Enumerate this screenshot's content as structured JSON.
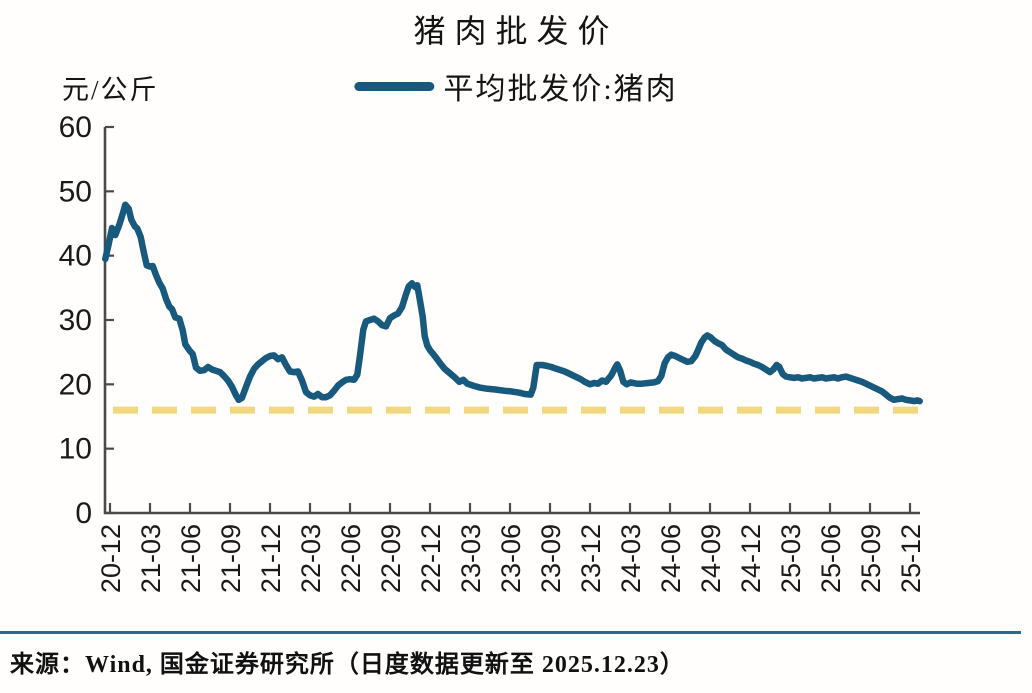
{
  "title": "猪肉批发价",
  "y_axis_unit": "元/公斤",
  "legend": {
    "label": "平均批发价:猪肉"
  },
  "source_note": "来源：Wind, 国金证券研究所（日度数据更新至 2025.12.23）",
  "chart_data": {
    "type": "line",
    "title": "猪肉批发价",
    "ylabel": "元/公斤",
    "ylim": [
      0,
      60
    ],
    "yticks": [
      0,
      10,
      20,
      30,
      40,
      50,
      60
    ],
    "x_tick_labels": [
      "20-12",
      "21-03",
      "21-06",
      "21-09",
      "21-12",
      "22-03",
      "22-06",
      "22-09",
      "22-12",
      "23-03",
      "23-06",
      "23-09",
      "23-12",
      "24-03",
      "24-06",
      "24-09",
      "24-12",
      "25-03",
      "25-06",
      "25-09",
      "25-12"
    ],
    "x_unit": "months_since_2020-12 (ticks quarterly)",
    "grid": false,
    "legend_position": "top-center",
    "axis_color": "#4A4A4A",
    "reference_line": {
      "value": 16,
      "style": "dashed",
      "color": "#F1D87E"
    },
    "series": [
      {
        "name": "平均批发价:猪肉",
        "color": "#175A7E",
        "points": [
          [
            -0.35,
            39.5
          ],
          [
            -0.1,
            41.8
          ],
          [
            0.15,
            44.3
          ],
          [
            0.4,
            43.2
          ],
          [
            0.7,
            44.8
          ],
          [
            0.95,
            46.5
          ],
          [
            1.15,
            47.9
          ],
          [
            1.4,
            47.3
          ],
          [
            1.6,
            45.6
          ],
          [
            1.85,
            44.6
          ],
          [
            2.05,
            44.2
          ],
          [
            2.3,
            42.9
          ],
          [
            2.5,
            40.9
          ],
          [
            2.75,
            38.5
          ],
          [
            3.0,
            38.3
          ],
          [
            3.2,
            38.4
          ],
          [
            3.45,
            37.0
          ],
          [
            3.7,
            35.8
          ],
          [
            3.95,
            34.9
          ],
          [
            4.2,
            33.3
          ],
          [
            4.45,
            32.1
          ],
          [
            4.65,
            31.7
          ],
          [
            4.9,
            30.4
          ],
          [
            5.2,
            30.2
          ],
          [
            5.45,
            28.4
          ],
          [
            5.65,
            26.2
          ],
          [
            5.95,
            25.3
          ],
          [
            6.2,
            24.7
          ],
          [
            6.45,
            22.6
          ],
          [
            6.75,
            22.1
          ],
          [
            7.05,
            22.2
          ],
          [
            7.35,
            22.7
          ],
          [
            7.65,
            22.3
          ],
          [
            7.95,
            22.1
          ],
          [
            8.25,
            21.9
          ],
          [
            8.55,
            21.3
          ],
          [
            8.85,
            20.6
          ],
          [
            9.15,
            19.6
          ],
          [
            9.45,
            18.3
          ],
          [
            9.65,
            17.6
          ],
          [
            9.9,
            17.9
          ],
          [
            10.2,
            19.6
          ],
          [
            10.5,
            21.2
          ],
          [
            10.8,
            22.4
          ],
          [
            11.1,
            23.1
          ],
          [
            11.4,
            23.6
          ],
          [
            11.7,
            24.1
          ],
          [
            12.0,
            24.4
          ],
          [
            12.3,
            24.5
          ],
          [
            12.6,
            23.9
          ],
          [
            12.9,
            24.2
          ],
          [
            13.2,
            23.0
          ],
          [
            13.5,
            22.0
          ],
          [
            13.8,
            21.9
          ],
          [
            14.1,
            22.0
          ],
          [
            14.4,
            20.6
          ],
          [
            14.7,
            18.8
          ],
          [
            15.0,
            18.3
          ],
          [
            15.3,
            18.1
          ],
          [
            15.6,
            18.5
          ],
          [
            15.9,
            18.0
          ],
          [
            16.2,
            18.0
          ],
          [
            16.5,
            18.3
          ],
          [
            16.8,
            19.0
          ],
          [
            17.1,
            19.8
          ],
          [
            17.4,
            20.3
          ],
          [
            17.7,
            20.7
          ],
          [
            18.0,
            20.8
          ],
          [
            18.3,
            20.7
          ],
          [
            18.55,
            21.5
          ],
          [
            18.75,
            24.5
          ],
          [
            19.0,
            28.5
          ],
          [
            19.2,
            29.8
          ],
          [
            19.5,
            30.0
          ],
          [
            19.8,
            30.2
          ],
          [
            20.1,
            29.8
          ],
          [
            20.4,
            29.2
          ],
          [
            20.7,
            29.0
          ],
          [
            21.0,
            30.3
          ],
          [
            21.3,
            30.7
          ],
          [
            21.6,
            31.0
          ],
          [
            21.9,
            32.0
          ],
          [
            22.2,
            34.0
          ],
          [
            22.4,
            35.2
          ],
          [
            22.65,
            35.7
          ],
          [
            22.9,
            35.1
          ],
          [
            23.05,
            35.4
          ],
          [
            23.25,
            33.0
          ],
          [
            23.45,
            30.5
          ],
          [
            23.6,
            27.5
          ],
          [
            23.8,
            26.0
          ],
          [
            24.0,
            25.3
          ],
          [
            24.4,
            24.3
          ],
          [
            24.75,
            23.3
          ],
          [
            25.1,
            22.4
          ],
          [
            25.5,
            21.7
          ],
          [
            25.9,
            21.0
          ],
          [
            26.2,
            20.4
          ],
          [
            26.5,
            20.7
          ],
          [
            26.8,
            20.1
          ],
          [
            27.1,
            19.9
          ],
          [
            27.4,
            19.7
          ],
          [
            27.75,
            19.5
          ],
          [
            28.3,
            19.3
          ],
          [
            28.9,
            19.2
          ],
          [
            29.6,
            19.0
          ],
          [
            30.1,
            18.9
          ],
          [
            30.7,
            18.7
          ],
          [
            31.1,
            18.5
          ],
          [
            31.55,
            18.4
          ],
          [
            31.75,
            19.5
          ],
          [
            32.0,
            23.0
          ],
          [
            32.4,
            23.0
          ],
          [
            32.7,
            22.9
          ],
          [
            33.1,
            22.7
          ],
          [
            33.5,
            22.4
          ],
          [
            33.8,
            22.2
          ],
          [
            34.1,
            22.0
          ],
          [
            34.5,
            21.6
          ],
          [
            34.9,
            21.2
          ],
          [
            35.3,
            20.8
          ],
          [
            35.6,
            20.4
          ],
          [
            36.0,
            20.0
          ],
          [
            36.3,
            20.2
          ],
          [
            36.6,
            20.1
          ],
          [
            36.9,
            20.6
          ],
          [
            37.2,
            20.4
          ],
          [
            37.6,
            21.4
          ],
          [
            37.9,
            22.6
          ],
          [
            38.05,
            23.1
          ],
          [
            38.25,
            22.2
          ],
          [
            38.5,
            20.4
          ],
          [
            38.75,
            20.0
          ],
          [
            39.05,
            20.3
          ],
          [
            39.5,
            20.1
          ],
          [
            39.9,
            20.1
          ],
          [
            40.35,
            20.2
          ],
          [
            40.8,
            20.3
          ],
          [
            41.1,
            20.5
          ],
          [
            41.35,
            21.3
          ],
          [
            41.6,
            23.3
          ],
          [
            41.85,
            24.2
          ],
          [
            42.1,
            24.6
          ],
          [
            42.4,
            24.4
          ],
          [
            42.7,
            24.1
          ],
          [
            43.0,
            23.8
          ],
          [
            43.3,
            23.5
          ],
          [
            43.6,
            23.6
          ],
          [
            43.9,
            24.4
          ],
          [
            44.1,
            25.3
          ],
          [
            44.35,
            26.5
          ],
          [
            44.6,
            27.3
          ],
          [
            44.8,
            27.6
          ],
          [
            45.05,
            27.3
          ],
          [
            45.3,
            26.8
          ],
          [
            45.6,
            26.4
          ],
          [
            45.9,
            26.1
          ],
          [
            46.2,
            25.4
          ],
          [
            46.5,
            25.0
          ],
          [
            46.8,
            24.6
          ],
          [
            47.1,
            24.2
          ],
          [
            47.4,
            24.0
          ],
          [
            47.7,
            23.7
          ],
          [
            48.0,
            23.5
          ],
          [
            48.3,
            23.2
          ],
          [
            48.6,
            23.0
          ],
          [
            48.9,
            22.7
          ],
          [
            49.2,
            22.3
          ],
          [
            49.5,
            21.9
          ],
          [
            49.75,
            22.3
          ],
          [
            50.0,
            23.0
          ],
          [
            50.2,
            22.7
          ],
          [
            50.45,
            21.6
          ],
          [
            50.7,
            21.2
          ],
          [
            51.0,
            21.1
          ],
          [
            51.3,
            21.0
          ],
          [
            51.6,
            21.1
          ],
          [
            51.9,
            20.9
          ],
          [
            52.2,
            21.0
          ],
          [
            52.5,
            21.1
          ],
          [
            52.8,
            20.9
          ],
          [
            53.1,
            21.0
          ],
          [
            53.4,
            21.1
          ],
          [
            53.7,
            20.9
          ],
          [
            54.0,
            21.0
          ],
          [
            54.3,
            21.1
          ],
          [
            54.6,
            20.9
          ],
          [
            54.9,
            21.1
          ],
          [
            55.2,
            21.2
          ],
          [
            55.5,
            21.0
          ],
          [
            55.8,
            20.8
          ],
          [
            56.1,
            20.6
          ],
          [
            56.4,
            20.4
          ],
          [
            56.8,
            20.0
          ],
          [
            57.2,
            19.6
          ],
          [
            57.5,
            19.3
          ],
          [
            57.9,
            18.9
          ],
          [
            58.2,
            18.4
          ],
          [
            58.5,
            17.9
          ],
          [
            58.8,
            17.6
          ],
          [
            59.1,
            17.7
          ],
          [
            59.4,
            17.8
          ],
          [
            59.7,
            17.6
          ],
          [
            60.0,
            17.5
          ],
          [
            60.3,
            17.4
          ],
          [
            60.55,
            17.5
          ],
          [
            60.73,
            17.4
          ]
        ]
      }
    ]
  }
}
